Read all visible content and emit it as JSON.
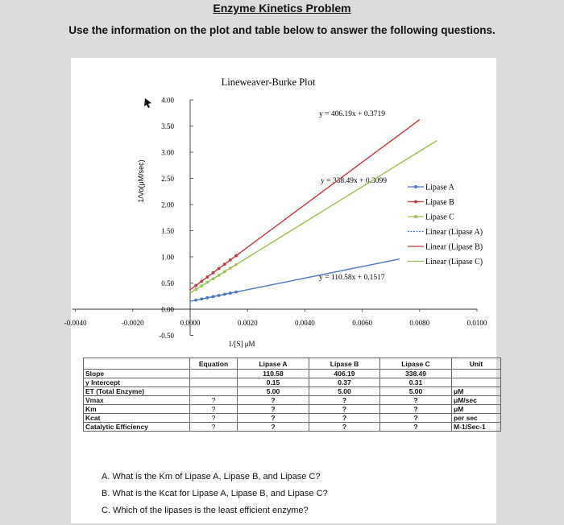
{
  "page": {
    "title": "Enzyme Kinetics Problem",
    "subtitle": "Use the information on the plot and table below to answer the following questions."
  },
  "chart_data": {
    "type": "line",
    "title": "Lineweaver-Burke Plot",
    "xlabel": "1/[S] μM",
    "ylabel": "1/Vo(μM/sec)",
    "xlim": [
      -0.004,
      0.01
    ],
    "ylim": [
      -0.5,
      4.0
    ],
    "x_ticks": [
      "-0.0040",
      "-0.0020",
      "0.0000",
      "0.0020",
      "0.0040",
      "0.0060",
      "0.0080",
      "0.0100"
    ],
    "y_ticks": [
      "4.00",
      "3.50",
      "3.00",
      "2.50",
      "2.00",
      "1.50",
      "1.00",
      "0.50",
      "0.00",
      "-0.50"
    ],
    "grid": false,
    "legend_position": "right",
    "legend": [
      "Lipase A",
      "Lipase B",
      "Lipase C",
      "Linear (Lipase A)",
      "Linear (Lipase B)",
      "Linear (Lipase C)"
    ],
    "series": [
      {
        "name": "Lipase A",
        "color": "#4a78c0",
        "slope": 110.58,
        "intercept": 0.1517,
        "x": [
          0.0002,
          0.0004,
          0.0006,
          0.0008,
          0.001,
          0.0012,
          0.0014,
          0.0016
        ]
      },
      {
        "name": "Lipase B",
        "color": "#c0393e",
        "slope": 406.19,
        "intercept": 0.3719,
        "x": [
          0.0002,
          0.0004,
          0.0006,
          0.0008,
          0.001,
          0.0012,
          0.0014,
          0.0016
        ]
      },
      {
        "name": "Lipase C",
        "color": "#9dc151",
        "slope": 338.49,
        "intercept": 0.3099,
        "x": [
          0.0002,
          0.0004,
          0.0006,
          0.0008,
          0.001,
          0.0012,
          0.0014,
          0.0016
        ]
      }
    ],
    "trendlines": [
      {
        "name": "Linear (Lipase A)",
        "color": "#4a78c0",
        "x_end": 0.0073
      },
      {
        "name": "Linear (Lipase B)",
        "color": "#c0393e",
        "x_end": 0.008
      },
      {
        "name": "Linear (Lipase C)",
        "color": "#9dc151",
        "x_end": 0.0086
      }
    ],
    "annotations": [
      "y = 406.19x + 0.3719",
      "y = 338.49x + 0.3099",
      "y = 110.58x + 0.1517"
    ]
  },
  "table": {
    "headers": [
      "",
      "Equation",
      "Lipase A",
      "Lipase B",
      "Lipase C",
      "Unit"
    ],
    "rows": [
      [
        "Slope",
        "",
        "110.58",
        "406.19",
        "338.49",
        ""
      ],
      [
        "y Intercept",
        "",
        "0.15",
        "0.37",
        "0.31",
        ""
      ],
      [
        "ET (Total Enzyme)",
        "",
        "5.00",
        "5.00",
        "5.00",
        "μM"
      ],
      [
        "Vmax",
        "?",
        "?",
        "?",
        "?",
        "μM/sec"
      ],
      [
        "Km",
        "?",
        "?",
        "?",
        "?",
        "μM"
      ],
      [
        "Kcat",
        "?",
        "?",
        "?",
        "?",
        "per sec"
      ],
      [
        "Catalytic Efficiency",
        "?",
        "?",
        "?",
        "?",
        "M-1/Sec-1"
      ]
    ]
  },
  "questions": [
    "A.  What is the Km of Lipase A, Lipase B, and Lipase C?",
    "B.  What is the Kcat for Lipase A,  Lipase B, and Lipase C?",
    "C.  Which of the lipases is the least efficient enzyme?"
  ]
}
